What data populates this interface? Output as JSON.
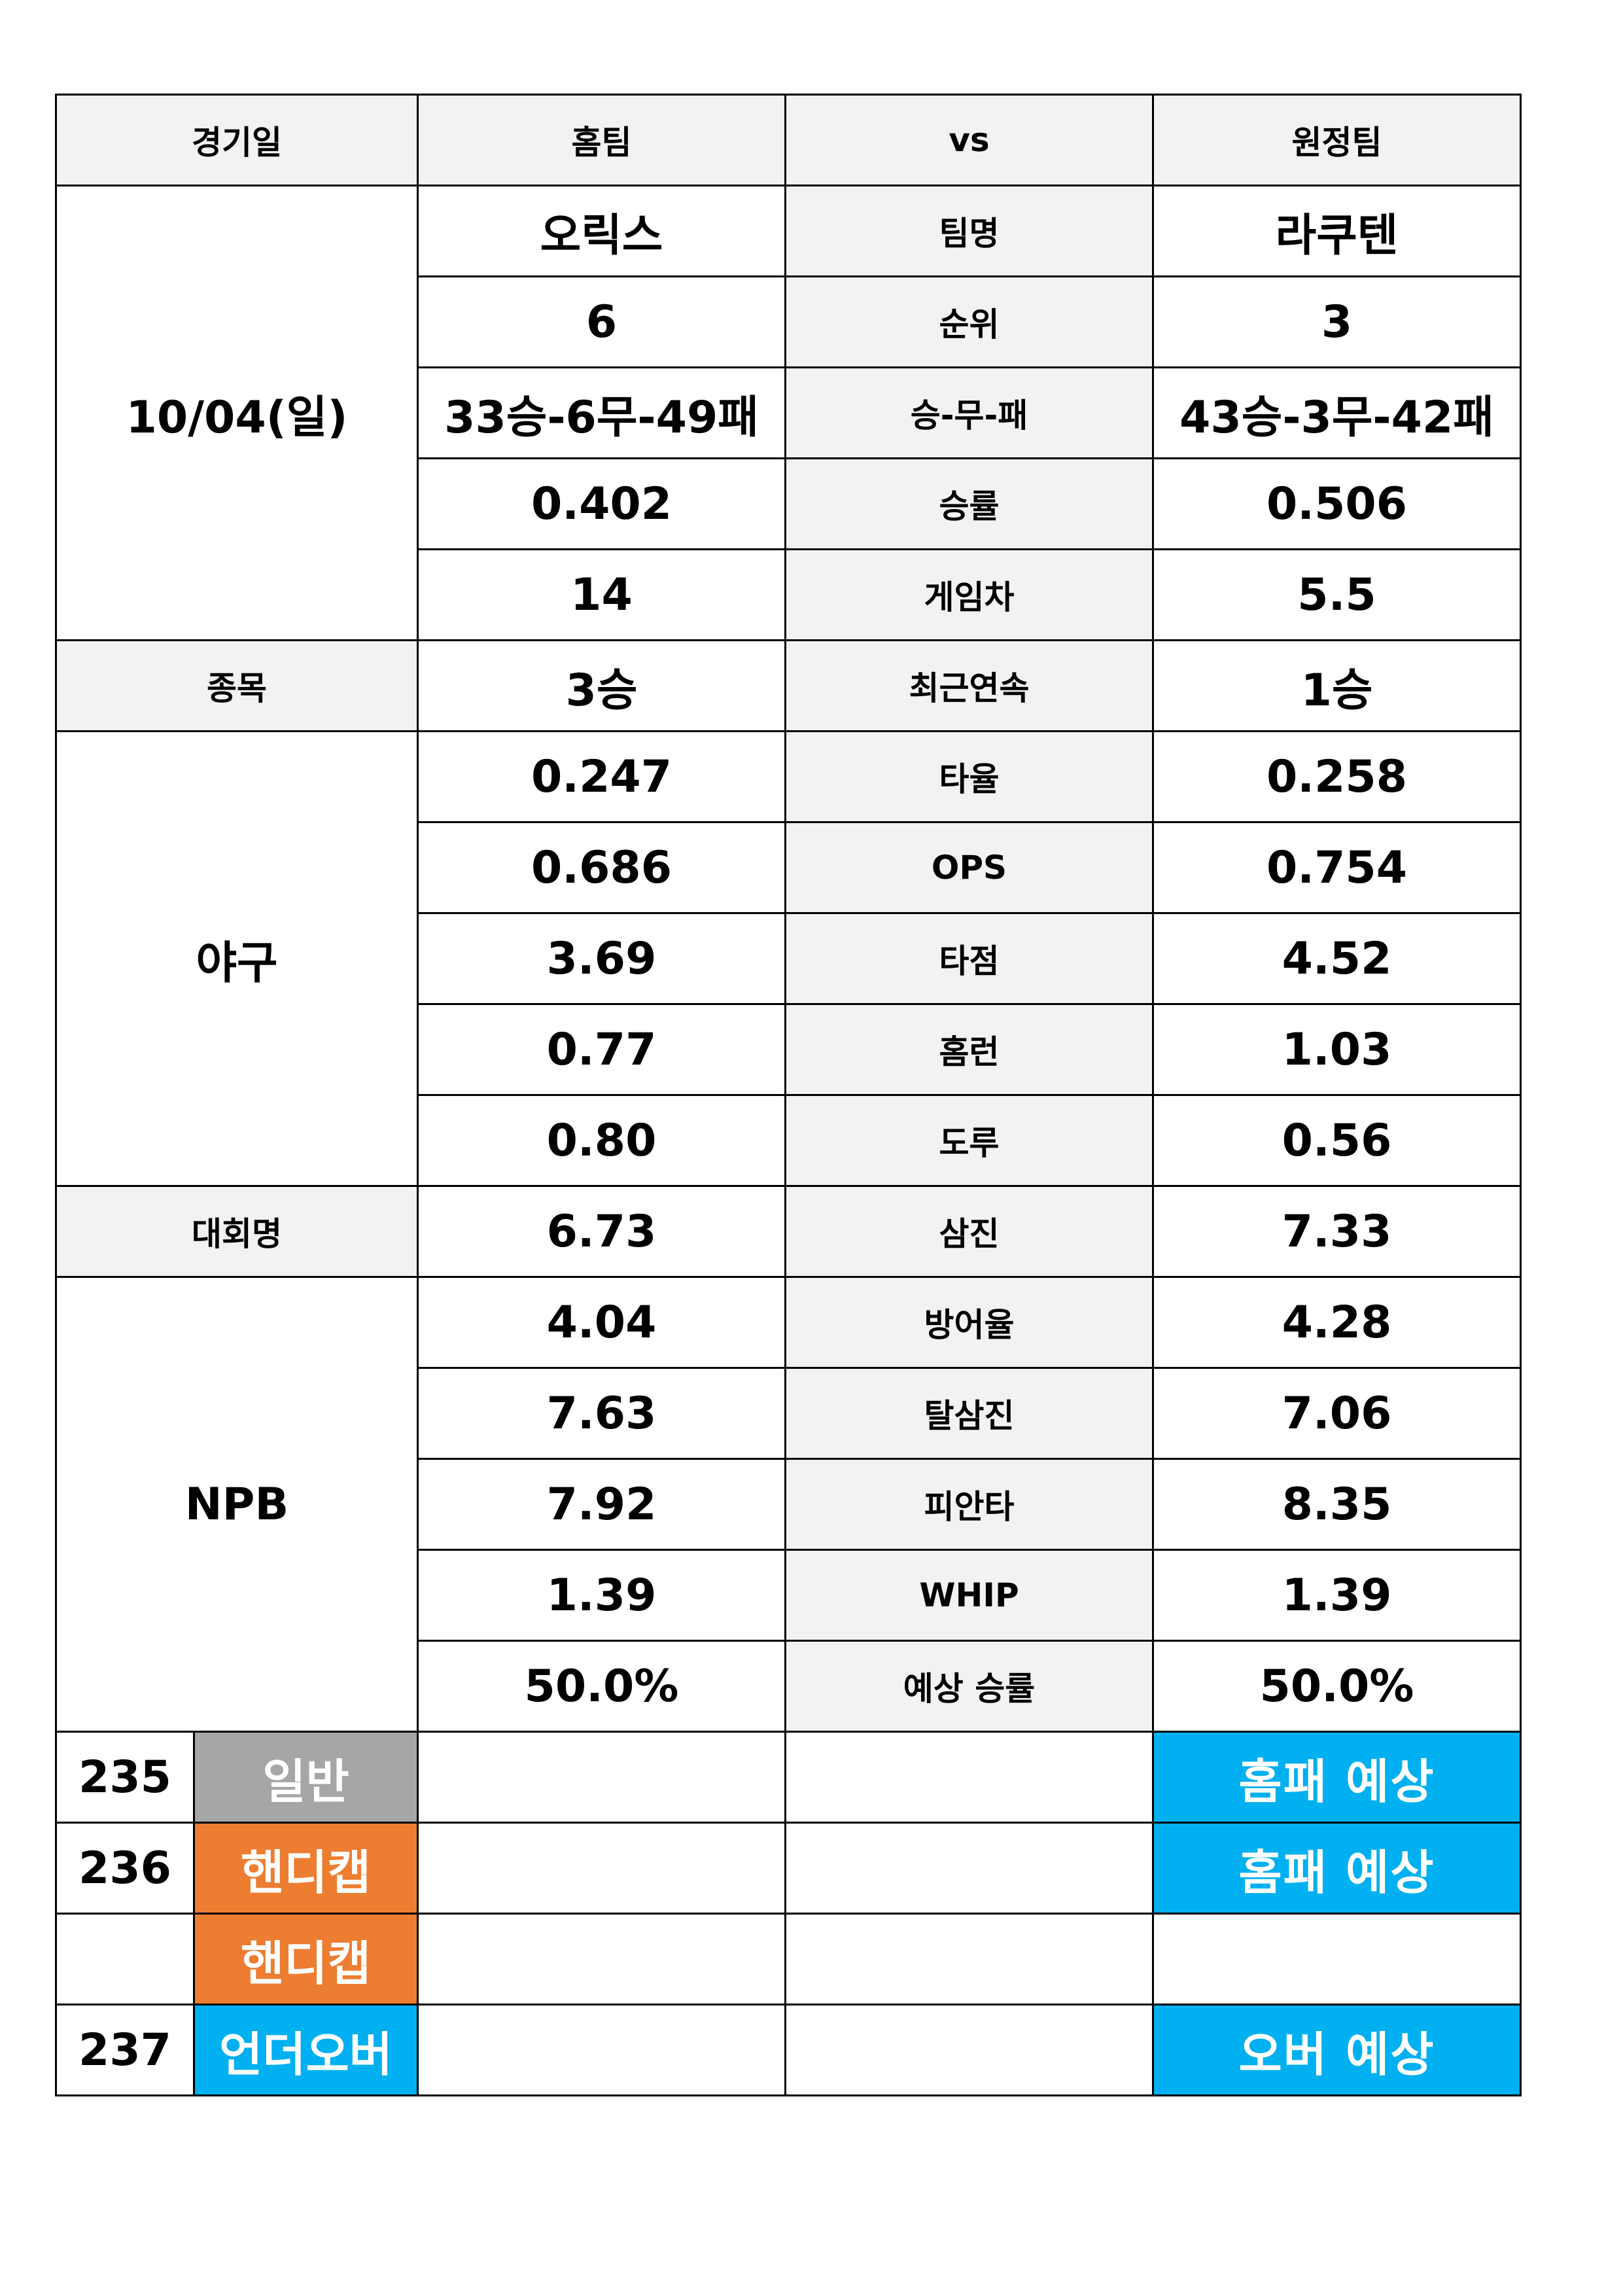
{
  "header": {
    "date_label": "경기일",
    "home_label": "홈팀",
    "vs_label": "vs",
    "away_label": "원정팀"
  },
  "match": {
    "date": "10/04(일)",
    "sport_label": "종목",
    "sport": "야구",
    "league_label": "대회명",
    "league": "NPB"
  },
  "stats": [
    {
      "label": "팀명",
      "home": "오릭스",
      "away": "라쿠텐"
    },
    {
      "label": "순위",
      "home": "6",
      "away": "3"
    },
    {
      "label": "승-무-패",
      "home": "33승-6무-49패",
      "away": "43승-3무-42패"
    },
    {
      "label": "승률",
      "home": "0.402",
      "away": "0.506"
    },
    {
      "label": "게임차",
      "home": "14",
      "away": "5.5"
    },
    {
      "label": "최근연속",
      "home": "3승",
      "away": "1승"
    },
    {
      "label": "타율",
      "home": "0.247",
      "away": "0.258"
    },
    {
      "label": "OPS",
      "home": "0.686",
      "away": "0.754"
    },
    {
      "label": "타점",
      "home": "3.69",
      "away": "4.52"
    },
    {
      "label": "홈런",
      "home": "0.77",
      "away": "1.03"
    },
    {
      "label": "도루",
      "home": "0.80",
      "away": "0.56"
    },
    {
      "label": "삼진",
      "home": "6.73",
      "away": "7.33"
    },
    {
      "label": "방어율",
      "home": "4.04",
      "away": "4.28"
    },
    {
      "label": "탈삼진",
      "home": "7.63",
      "away": "7.06"
    },
    {
      "label": "피안타",
      "home": "7.92",
      "away": "8.35"
    },
    {
      "label": "WHIP",
      "home": "1.39",
      "away": "1.39"
    },
    {
      "label": "예상 승률",
      "home": "50.0%",
      "away": "50.0%"
    }
  ],
  "picks": [
    {
      "number": "235",
      "type": "일반",
      "type_color": "#a6a6a6",
      "home_pick": "",
      "mid": "",
      "away_pick": "홈패 예상"
    },
    {
      "number": "236",
      "type": "핸디캡",
      "type_color": "#ed7d31",
      "home_pick": "",
      "mid": "",
      "away_pick": "홈패 예상"
    },
    {
      "number": "",
      "type": "핸디캡",
      "type_color": "#ed7d31",
      "home_pick": "",
      "mid": "",
      "away_pick": ""
    },
    {
      "number": "237",
      "type": "언더오버",
      "type_color": "#00b0f0",
      "home_pick": "",
      "mid": "",
      "away_pick": "오버 예상"
    }
  ],
  "colors": {
    "header_bg": "#f2f2f2",
    "pick_blue": "#00b0f0",
    "handicap_orange": "#ed7d31",
    "general_gray": "#a6a6a6"
  }
}
